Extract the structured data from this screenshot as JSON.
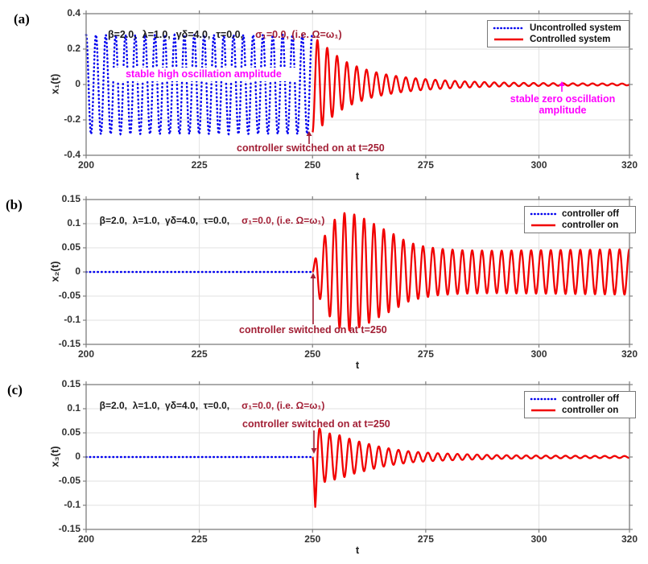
{
  "colors": {
    "blue": "#0000EE",
    "red": "#F10000",
    "magenta": "#FF00FF",
    "darkred": "#A21F35",
    "grid": "#E2E2E2",
    "axis": "#7E7E7E"
  },
  "chart_data": {
    "type": "line",
    "layout": "3 stacked subplots, shared x axis t from 200 to 320, grid on, legend top-right, box on",
    "panels": [
      {
        "id": "a",
        "panel_label": "(a)",
        "title": {
          "params": "β=2.0,  λ=1.0,  γδ=4.0,  τ=0.0,",
          "sigma": "σ₁=0.0, (i.e. Ω=ω₁)"
        },
        "xlabel": "t",
        "ylabel": "x₁(t)",
        "xlim": [
          200,
          320
        ],
        "ylim": [
          -0.4,
          0.4
        ],
        "xticks": [
          "200",
          "225",
          "250",
          "275",
          "300",
          "320"
        ],
        "yticks": [
          "0.4",
          "0.2",
          "0",
          "-0.2",
          "-0.4"
        ],
        "legend": {
          "position": "top-right",
          "entries": [
            {
              "label": "Uncontrolled system",
              "style": "dotted",
              "color": "blue"
            },
            {
              "label": "Controlled system",
              "style": "solid",
              "color": "red"
            }
          ]
        },
        "series": [
          {
            "name": "uncontrolled",
            "style": "dotted",
            "color": "blue",
            "t_range": [
              200,
              250
            ],
            "period": 2.17,
            "phase_deg": 90,
            "envelope": [
              [
                200,
                0.28
              ],
              [
                250,
                0.28
              ]
            ]
          },
          {
            "name": "controlled",
            "style": "solid",
            "color": "red",
            "t_range": [
              250,
              320
            ],
            "period": 2.17,
            "phase_deg": -90,
            "envelope": [
              [
                250,
                0.27
              ],
              [
                252,
                0.235
              ],
              [
                254,
                0.19
              ],
              [
                256,
                0.15
              ],
              [
                258,
                0.12
              ],
              [
                260,
                0.1
              ],
              [
                263,
                0.075
              ],
              [
                266,
                0.058
              ],
              [
                270,
                0.042
              ],
              [
                274,
                0.032
              ],
              [
                278,
                0.025
              ],
              [
                283,
                0.018
              ],
              [
                290,
                0.012
              ],
              [
                297,
                0.009
              ],
              [
                305,
                0.007
              ],
              [
                312,
                0.006
              ],
              [
                320,
                0.005
              ]
            ]
          }
        ],
        "annotations": [
          {
            "text": "stable high oscillation amplitude",
            "color": "magenta"
          },
          {
            "text": "controller switched on at t=250",
            "color": "darkred",
            "arrow": "up at t=250"
          },
          {
            "text": "stable zero oscillation",
            "text2": "amplitude",
            "color": "magenta",
            "arrow": "up at t≈306"
          }
        ]
      },
      {
        "id": "b",
        "panel_label": "(b)",
        "title": {
          "params": "β=2.0,  λ=1.0,  γδ=4.0,  τ=0.0,",
          "sigma": "σ₁=0.0, (i.e. Ω=ω₁)"
        },
        "xlabel": "t",
        "ylabel": "x₂(t)",
        "xlim": [
          200,
          320
        ],
        "ylim": [
          -0.15,
          0.15
        ],
        "xticks": [
          "200",
          "225",
          "250",
          "275",
          "300",
          "320"
        ],
        "yticks": [
          "0.15",
          "0.1",
          "0.05",
          "0",
          "-0.05",
          "-0.1",
          "-0.15"
        ],
        "legend": {
          "position": "top-right",
          "entries": [
            {
              "label": "controller off",
              "style": "dotted",
              "color": "blue"
            },
            {
              "label": "controller on",
              "style": "solid",
              "color": "red"
            }
          ]
        },
        "series": [
          {
            "name": "controller off",
            "style": "dotted",
            "color": "blue",
            "t_range": [
              200,
              250
            ],
            "period": 2.17,
            "phase_deg": 0,
            "envelope": [
              [
                200,
                0
              ],
              [
                250,
                0
              ]
            ]
          },
          {
            "name": "controller on",
            "style": "solid",
            "color": "red",
            "t_range": [
              250,
              320
            ],
            "period": 2.17,
            "phase_deg": 0,
            "envelope": [
              [
                250,
                0.0
              ],
              [
                251,
                0.045
              ],
              [
                253,
                0.08
              ],
              [
                255,
                0.11
              ],
              [
                257,
                0.122
              ],
              [
                259,
                0.12
              ],
              [
                262,
                0.108
              ],
              [
                265,
                0.092
              ],
              [
                268,
                0.078
              ],
              [
                271,
                0.062
              ],
              [
                274,
                0.054
              ],
              [
                278,
                0.048
              ],
              [
                283,
                0.045
              ],
              [
                290,
                0.044
              ],
              [
                300,
                0.045
              ],
              [
                310,
                0.046
              ],
              [
                320,
                0.047
              ]
            ]
          }
        ],
        "annotations": [
          {
            "text": "controller switched on at t=250",
            "color": "darkred",
            "arrow": "up at t=250"
          }
        ]
      },
      {
        "id": "c",
        "panel_label": "(c)",
        "title": {
          "params": "β=2.0,  λ=1.0,  γδ=4.0,  τ=0.0,",
          "sigma": "σ₁=0.0, (i.e. Ω=ω₁)"
        },
        "xlabel": "t",
        "ylabel": "x₃(t)",
        "xlim": [
          200,
          320
        ],
        "ylim": [
          -0.15,
          0.15
        ],
        "xticks": [
          "200",
          "225",
          "250",
          "275",
          "300",
          "320"
        ],
        "yticks": [
          "0.15",
          "0.1",
          "0.05",
          "0",
          "-0.05",
          "-0.1",
          "-0.15"
        ],
        "legend": {
          "position": "top-right",
          "entries": [
            {
              "label": "controller off",
              "style": "dotted",
              "color": "blue"
            },
            {
              "label": "controller on",
              "style": "solid",
              "color": "red"
            }
          ]
        },
        "series": [
          {
            "name": "controller off",
            "style": "dotted",
            "color": "blue",
            "t_range": [
              200,
              250
            ],
            "period": 2.17,
            "phase_deg": 0,
            "envelope": [
              [
                200,
                0
              ],
              [
                250,
                0
              ]
            ]
          },
          {
            "name": "controller on",
            "style": "solid",
            "color": "red",
            "t_range": [
              250,
              320
            ],
            "period": 2.17,
            "phase_deg": 180,
            "envelope": [
              [
                250,
                0.0
              ],
              [
                250.6,
                0.105
              ],
              [
                251.6,
                0.058
              ],
              [
                253,
                0.05
              ],
              [
                256,
                0.045
              ],
              [
                259,
                0.035
              ],
              [
                262,
                0.028
              ],
              [
                265,
                0.021
              ],
              [
                268,
                0.016
              ],
              [
                272,
                0.011
              ],
              [
                277,
                0.008
              ],
              [
                283,
                0.006
              ],
              [
                290,
                0.004
              ],
              [
                300,
                0.003
              ],
              [
                320,
                0.002
              ]
            ]
          }
        ],
        "annotations": [
          {
            "text": "controller switched on at t=250",
            "color": "darkred",
            "arrow": "down at t=250"
          }
        ]
      }
    ]
  }
}
